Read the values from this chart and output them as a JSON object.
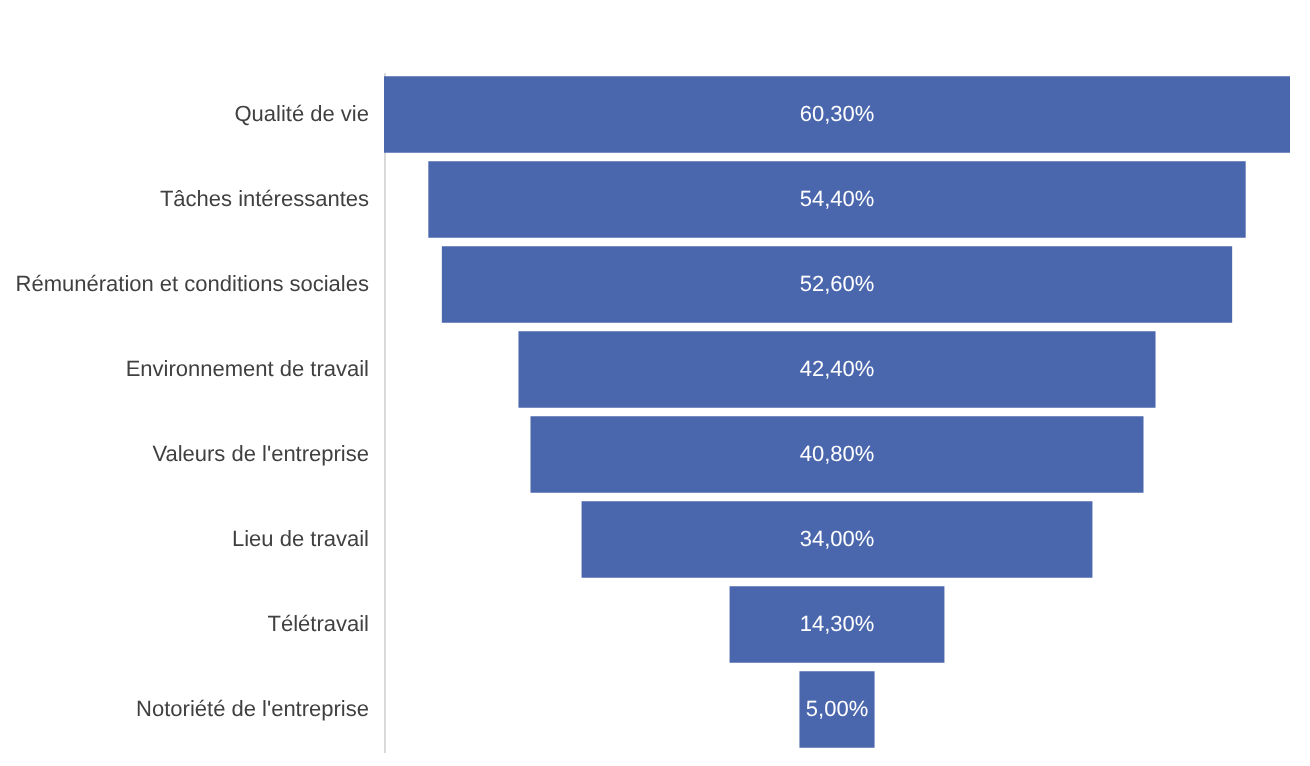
{
  "chart_data": {
    "type": "other",
    "categories": [
      "Qualité de vie",
      "Tâches intéressantes",
      "Rémunération et conditions sociales",
      "Environnement de travail",
      "Valeurs de l'entreprise",
      "Lieu de travail",
      "Télétravail",
      "Notoriété de l'entreprise"
    ],
    "values": [
      60.3,
      54.4,
      52.6,
      42.4,
      40.8,
      34.0,
      14.3,
      5.0
    ],
    "value_labels": [
      "60,30%",
      "54,40%",
      "52,60%",
      "42,40%",
      "40,80%",
      "34,00%",
      "14,30%",
      "5,00%"
    ],
    "color": "#4a66ad"
  }
}
